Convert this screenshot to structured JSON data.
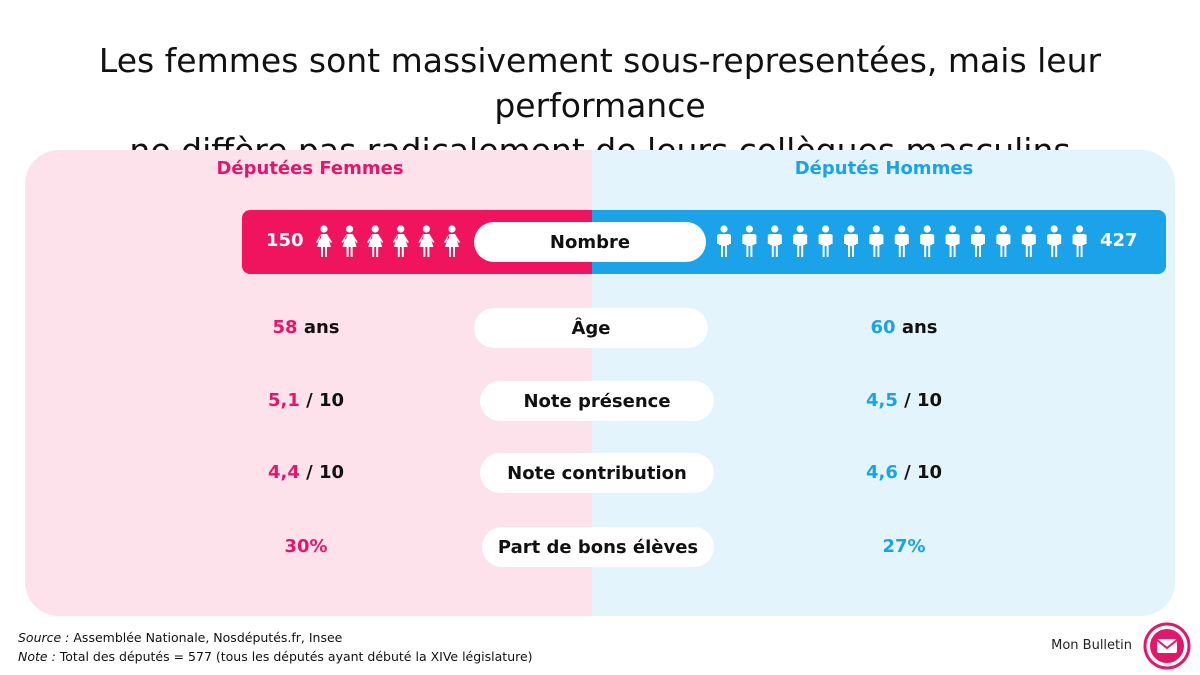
{
  "title_line1": "Les femmes sont massivement sous-representées, mais leur performance",
  "title_line2": "ne diffère pas radicalement de leurs collègues masculins",
  "colors": {
    "women": "#f0145f",
    "men": "#1aa3e8",
    "women_bg": "#fde2ec",
    "men_bg": "#e3f4fc"
  },
  "chart_data": {
    "type": "table",
    "columns": [
      "Députées Femmes",
      "Députés Hommes"
    ],
    "rows": [
      {
        "label": "Nombre",
        "women": "150",
        "men": "427",
        "women_icons": 6,
        "men_icons": 15
      },
      {
        "label": "Âge",
        "women_value": "58",
        "women_unit": " ans",
        "men_value": "60",
        "men_unit": " ans"
      },
      {
        "label": "Note présence",
        "women_value": "5,1",
        "women_unit": " / 10",
        "men_value": "4,5",
        "men_unit": " / 10"
      },
      {
        "label": "Note contribution",
        "women_value": "4,4",
        "women_unit": " / 10",
        "men_value": "4,6",
        "men_unit": " / 10"
      },
      {
        "label": "Part de bons élèves",
        "women_value": "30%",
        "women_unit": "",
        "men_value": "27%",
        "men_unit": ""
      }
    ]
  },
  "footer": {
    "source_label": "Source :",
    "source_text": " Assemblée Nationale, Nosdéputés.fr, Insee",
    "note_label": "Note :",
    "note_text": " Total des députés = 577 (tous les députés ayant débuté la XIVe législature)"
  },
  "brand": "Mon Bulletin",
  "icons": {
    "women": "woman-icon",
    "men": "man-icon",
    "logo": "envelope-icon"
  }
}
